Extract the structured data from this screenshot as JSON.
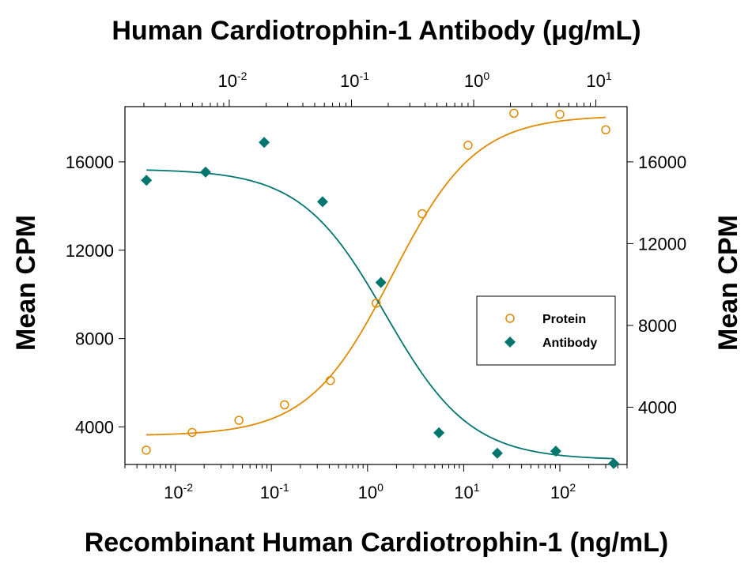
{
  "chart_data": {
    "type": "scatter",
    "title": "",
    "x_bottom_label": "Recombinant Human Cardiotrophin-1 (ng/mL)",
    "x_top_label": "Human Cardiotrophin-1 Antibody (μg/mL)",
    "y_left_label": "Mean CPM",
    "y_right_label": "Mean CPM",
    "x_bottom_scale": "log",
    "x_top_scale": "log",
    "x_bottom_range": [
      0.003,
      500
    ],
    "x_top_range": [
      0.0014,
      18
    ],
    "y_left_range": [
      2300,
      18500
    ],
    "y_right_range": [
      1200,
      18700
    ],
    "x_bottom_ticks": [
      {
        "base": "10",
        "exp": "-2",
        "value": 0.01
      },
      {
        "base": "10",
        "exp": "-1",
        "value": 0.1
      },
      {
        "base": "10",
        "exp": "0",
        "value": 1
      },
      {
        "base": "10",
        "exp": "1",
        "value": 10
      },
      {
        "base": "10",
        "exp": "2",
        "value": 100
      }
    ],
    "x_top_ticks": [
      {
        "base": "10",
        "exp": "-2",
        "value": 0.01
      },
      {
        "base": "10",
        "exp": "-1",
        "value": 0.1
      },
      {
        "base": "10",
        "exp": "0",
        "value": 1
      },
      {
        "base": "10",
        "exp": "1",
        "value": 10
      }
    ],
    "y_left_ticks": [
      {
        "label": "4000",
        "value": 4000
      },
      {
        "label": "8000",
        "value": 8000
      },
      {
        "label": "12000",
        "value": 12000
      },
      {
        "label": "16000",
        "value": 16000
      }
    ],
    "y_right_ticks": [
      {
        "label": "4000",
        "value": 4000
      },
      {
        "label": "8000",
        "value": 8000
      },
      {
        "label": "12000",
        "value": 12000
      },
      {
        "label": "16000",
        "value": 16000
      }
    ],
    "grid": false,
    "legend_position": "center-right",
    "series": [
      {
        "name": "Protein",
        "x_axis": "bottom",
        "y_axis": "left",
        "marker": "open-circle",
        "color": "#E08A00",
        "points": [
          {
            "x": 0.005,
            "y": 2950
          },
          {
            "x": 0.015,
            "y": 3750
          },
          {
            "x": 0.046,
            "y": 4300
          },
          {
            "x": 0.137,
            "y": 5000
          },
          {
            "x": 0.41,
            "y": 6100
          },
          {
            "x": 1.23,
            "y": 9600
          },
          {
            "x": 3.7,
            "y": 13650
          },
          {
            "x": 11.1,
            "y": 16750
          },
          {
            "x": 33.3,
            "y": 18200
          },
          {
            "x": 100,
            "y": 18150
          },
          {
            "x": 300,
            "y": 17450
          }
        ],
        "fit": {
          "bottom": 3600,
          "top": 18100,
          "ec50": 1.8,
          "hill": 1.0
        }
      },
      {
        "name": "Antibody",
        "x_axis": "top",
        "y_axis": "right",
        "marker": "filled-diamond",
        "color": "#00766E",
        "points": [
          {
            "x": 0.0021,
            "y": 15100
          },
          {
            "x": 0.0064,
            "y": 15500
          },
          {
            "x": 0.0193,
            "y": 16950
          },
          {
            "x": 0.058,
            "y": 14050
          },
          {
            "x": 0.174,
            "y": 10100
          },
          {
            "x": 0.52,
            "y": 2750
          },
          {
            "x": 1.56,
            "y": 1750
          },
          {
            "x": 4.7,
            "y": 1850
          },
          {
            "x": 14.0,
            "y": 1250
          }
        ],
        "fit": {
          "bottom": 1420,
          "top": 15650,
          "ic50": 0.19,
          "hill": 1.25
        }
      }
    ]
  }
}
